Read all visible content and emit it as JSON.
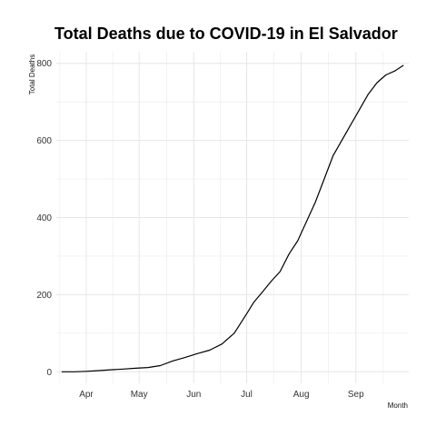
{
  "chart_data": {
    "type": "line",
    "title": "Total Deaths due to COVID-19 in El Salvador",
    "xlabel": "Month",
    "ylabel": "Total Deaths",
    "grid": true,
    "legend": "none",
    "line_color": "#000000",
    "grid_color": "#e6e6e6",
    "xlim": [
      "2020-03-15",
      "2020-10-01"
    ],
    "ylim": [
      -30,
      830
    ],
    "x_ticks": [
      {
        "date": "2020-04-01",
        "label": "Apr"
      },
      {
        "date": "2020-05-01",
        "label": "May"
      },
      {
        "date": "2020-06-01",
        "label": "Jun"
      },
      {
        "date": "2020-07-01",
        "label": "Jul"
      },
      {
        "date": "2020-08-01",
        "label": "Aug"
      },
      {
        "date": "2020-09-01",
        "label": "Sep"
      }
    ],
    "y_ticks": [
      0,
      200,
      400,
      600,
      800
    ],
    "series": [
      {
        "x": [
          "2020-03-18",
          "2020-03-25",
          "2020-04-01",
          "2020-04-08",
          "2020-04-15",
          "2020-04-22",
          "2020-04-29",
          "2020-05-06",
          "2020-05-13",
          "2020-05-20",
          "2020-05-27",
          "2020-06-03",
          "2020-06-10",
          "2020-06-17",
          "2020-06-24",
          "2020-07-01",
          "2020-07-05",
          "2020-07-10",
          "2020-07-15",
          "2020-07-20",
          "2020-07-25",
          "2020-07-30",
          "2020-08-04",
          "2020-08-09",
          "2020-08-14",
          "2020-08-19",
          "2020-08-24",
          "2020-08-29",
          "2020-09-03",
          "2020-09-08",
          "2020-09-13",
          "2020-09-18",
          "2020-09-23",
          "2020-09-28"
        ],
        "y": [
          0,
          0,
          1,
          3,
          5,
          7,
          9,
          11,
          16,
          28,
          37,
          47,
          56,
          72,
          100,
          150,
          180,
          207,
          235,
          260,
          305,
          340,
          390,
          440,
          500,
          560,
          600,
          640,
          680,
          720,
          750,
          770,
          780,
          795
        ]
      }
    ]
  }
}
